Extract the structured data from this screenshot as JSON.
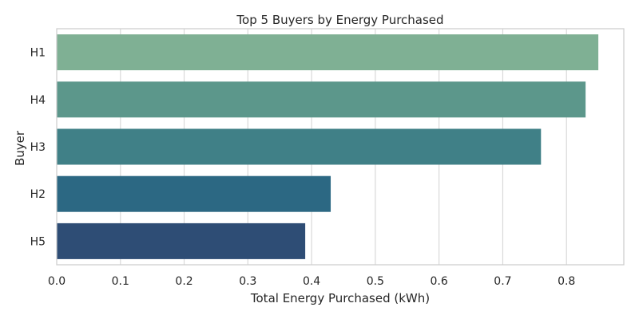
{
  "chart_data": {
    "type": "bar",
    "orientation": "horizontal",
    "title": "Top 5 Buyers by Energy Purchased",
    "xlabel": "Total Energy Purchased (kWh)",
    "ylabel": "Buyer",
    "categories": [
      "H1",
      "H4",
      "H3",
      "H2",
      "H5"
    ],
    "values": [
      0.85,
      0.83,
      0.76,
      0.43,
      0.39
    ],
    "xlim": [
      0.0,
      0.89
    ],
    "xticks": [
      0.0,
      0.1,
      0.2,
      0.3,
      0.4,
      0.5,
      0.6,
      0.7,
      0.8
    ],
    "xtick_labels": [
      "0.0",
      "0.1",
      "0.2",
      "0.3",
      "0.4",
      "0.5",
      "0.6",
      "0.7",
      "0.8"
    ],
    "grid": true,
    "colors": [
      "#7fb094",
      "#5c978b",
      "#408087",
      "#2c6883",
      "#2e4d75"
    ],
    "grid_color": "#d9d9d9",
    "axis_color": "#cccccc",
    "text_color": "#262626"
  }
}
